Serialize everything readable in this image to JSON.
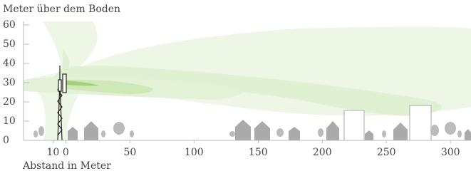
{
  "chart_data": {
    "type": "area",
    "ylabel": "Meter über dem Boden",
    "xlabel": "Abstand in Meter",
    "xlim": [
      -33,
      316
    ],
    "xticks": [
      {
        "value": -10,
        "label": "10"
      },
      0,
      50,
      100,
      150,
      200,
      250,
      300
    ],
    "ylim": [
      0,
      60
    ],
    "yticks": [
      0,
      10,
      20,
      30,
      40,
      50,
      60
    ]
  }
}
